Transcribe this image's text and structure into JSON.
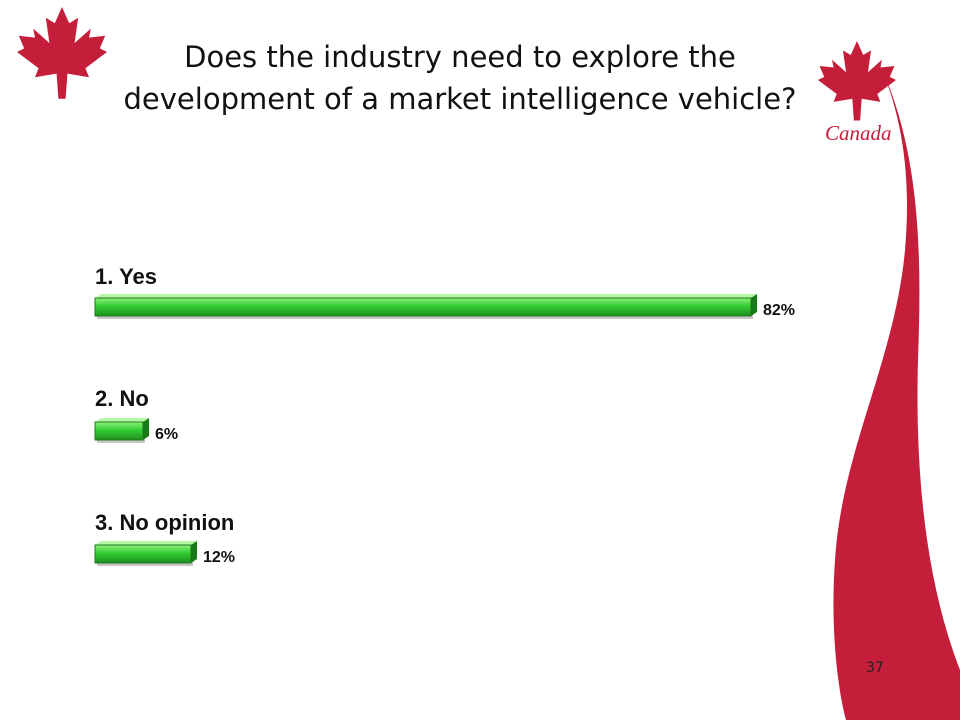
{
  "slide": {
    "title": "Does the industry need to explore the development of a market intelligence vehicle?",
    "brand_text": "Canada",
    "page_number": "37",
    "brand_color": "#c41e3a"
  },
  "icons": [
    "maple-leaf-icon",
    "canada-wordmark-logo"
  ],
  "chart_data": {
    "type": "bar",
    "orientation": "horizontal",
    "categories": [
      "1. Yes",
      "2. No",
      "3. No opinion"
    ],
    "values": [
      82,
      6,
      12
    ],
    "value_labels": [
      "82%",
      "6%",
      "12%"
    ],
    "unit": "%",
    "xlim": [
      0,
      100
    ],
    "bar_color": "#33cc33",
    "grid": false,
    "legend": "none"
  }
}
